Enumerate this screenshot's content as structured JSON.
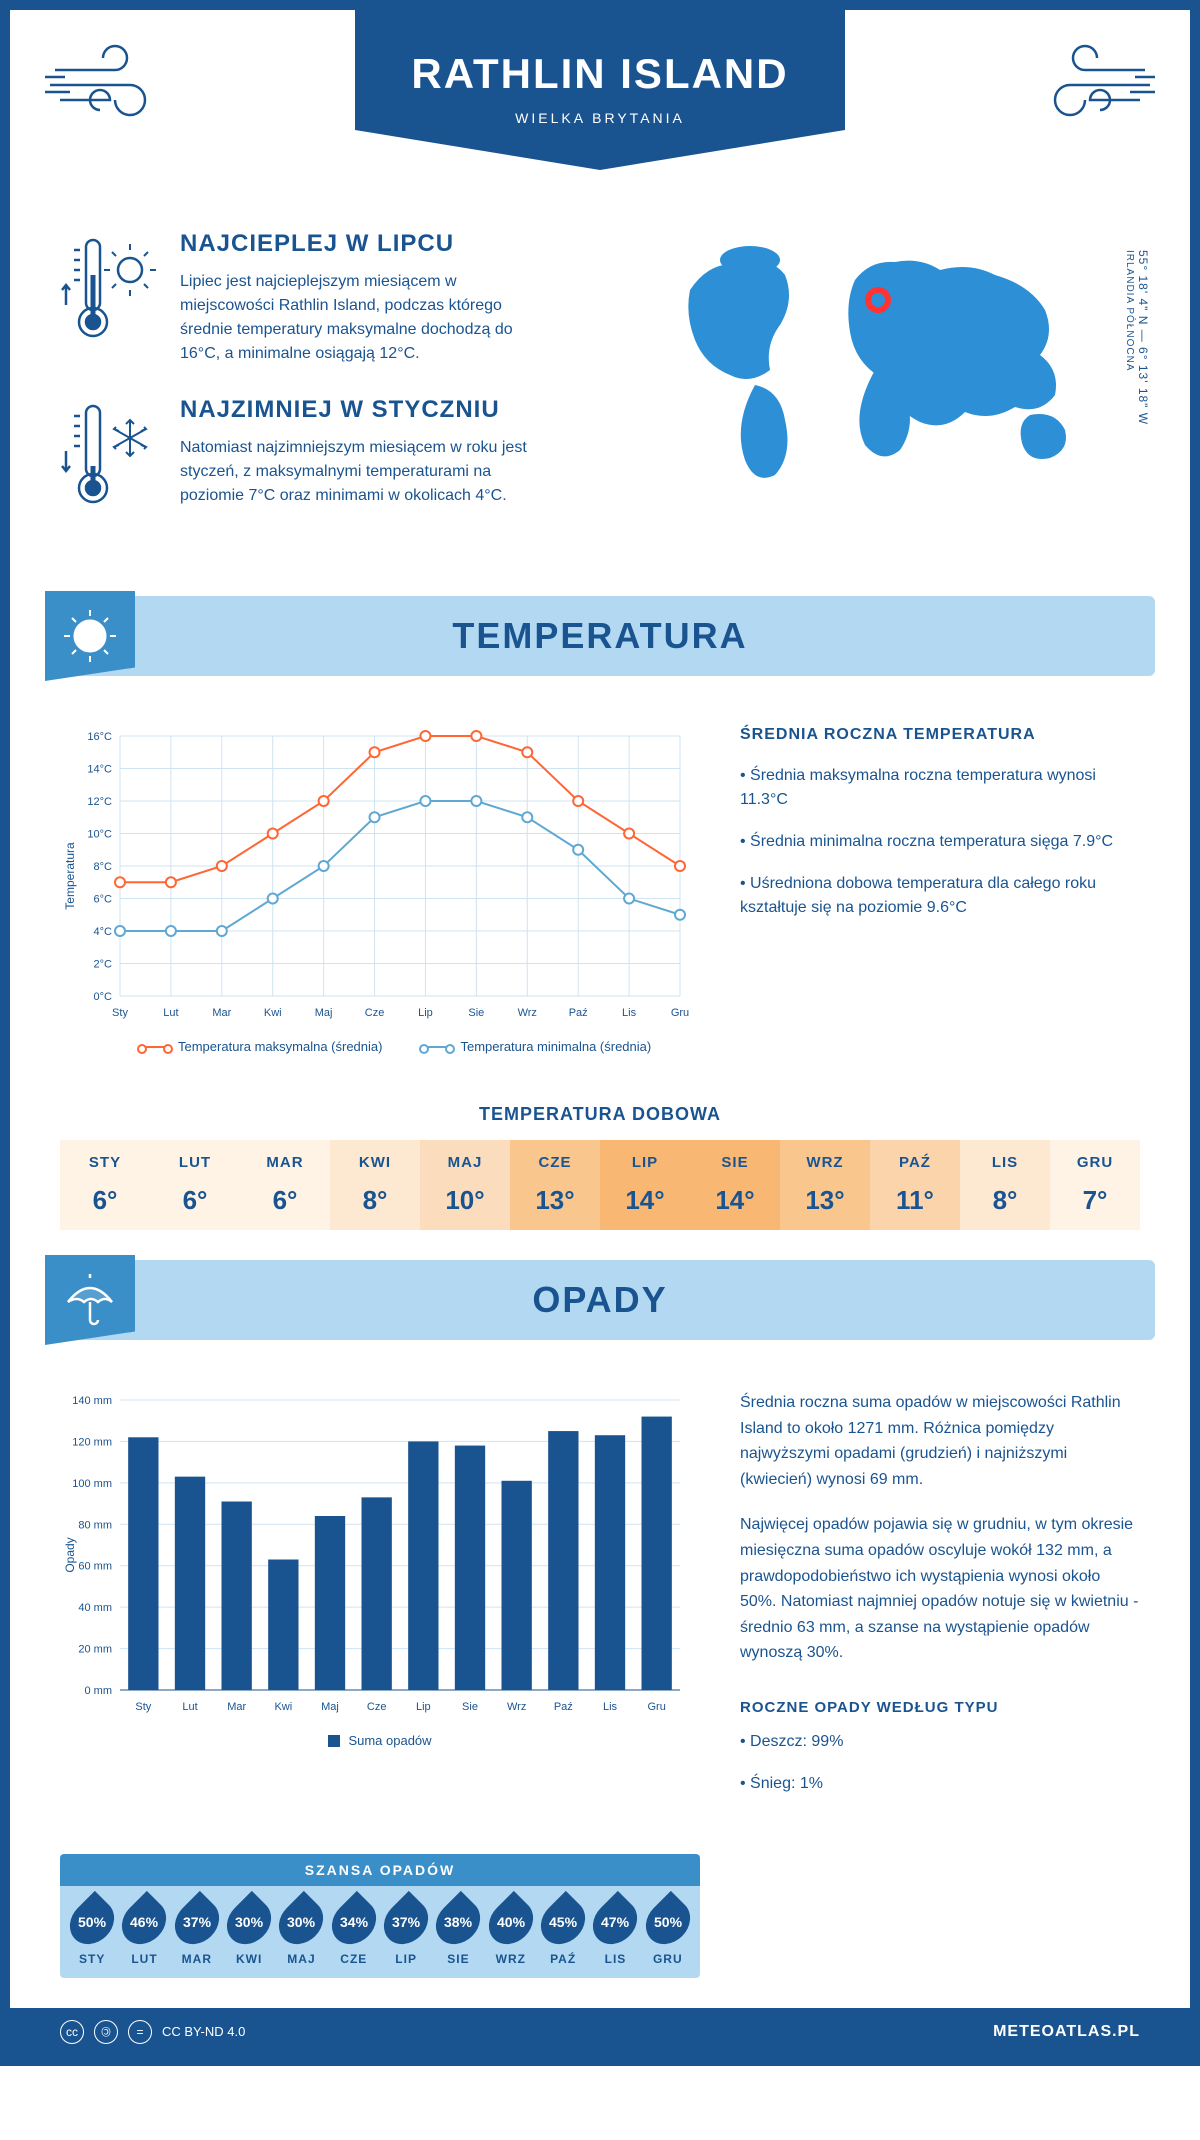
{
  "header": {
    "title": "RATHLIN ISLAND",
    "subtitle": "WIELKA BRYTANIA"
  },
  "coords": {
    "lat_lon": "55° 18' 4\" N — 6° 13' 18\" W",
    "region": "IRLANDIA PÓŁNOCNA"
  },
  "intro": {
    "hot": {
      "heading": "NAJCIEPLEJ W LIPCU",
      "text": "Lipiec jest najcieplejszym miesiącem w miejscowości Rathlin Island, podczas którego średnie temperatury maksymalne dochodzą do 16°C, a minimalne osiągają 12°C."
    },
    "cold": {
      "heading": "NAJZIMNIEJ W STYCZNIU",
      "text": "Natomiast najzimniejszym miesiącem w roku jest styczeń, z maksymalnymi temperaturami na poziomie 7°C oraz minimami w okolicach 4°C."
    }
  },
  "sections": {
    "temperature_title": "TEMPERATURA",
    "precipitation_title": "OPADY"
  },
  "months_short": [
    "Sty",
    "Lut",
    "Mar",
    "Kwi",
    "Maj",
    "Cze",
    "Lip",
    "Sie",
    "Wrz",
    "Paź",
    "Lis",
    "Gru"
  ],
  "months_upper": [
    "STY",
    "LUT",
    "MAR",
    "KWI",
    "MAJ",
    "CZE",
    "LIP",
    "SIE",
    "WRZ",
    "PAŹ",
    "LIS",
    "GRU"
  ],
  "temperature_chart": {
    "type": "line",
    "y_axis_title": "Temperatura",
    "ylim": [
      0,
      16
    ],
    "ytick_step": 2,
    "ytick_suffix": "°C",
    "grid_color": "#cfe3f2",
    "background_color": "#ffffff",
    "series": {
      "max": {
        "label": "Temperatura maksymalna (średnia)",
        "color": "#ff6633",
        "values": [
          7,
          7,
          8,
          10,
          12,
          15,
          16,
          16,
          15,
          12,
          10,
          8
        ]
      },
      "min": {
        "label": "Temperatura minimalna (średnia)",
        "color": "#5fa8d3",
        "values": [
          4,
          4,
          4,
          6,
          8,
          11,
          12,
          12,
          11,
          9,
          6,
          5
        ]
      }
    },
    "line_width": 2,
    "marker": "circle",
    "marker_size": 5
  },
  "temperature_side": {
    "heading": "ŚREDNIA ROCZNA TEMPERATURA",
    "items": [
      "Średnia maksymalna roczna temperatura wynosi 11.3°C",
      "Średnia minimalna roczna temperatura sięga 7.9°C",
      "Uśredniona dobowa temperatura dla całego roku kształtuje się na poziomie 9.6°C"
    ]
  },
  "daily": {
    "heading": "TEMPERATURA DOBOWA",
    "values": [
      "6°",
      "6°",
      "6°",
      "8°",
      "10°",
      "13°",
      "14°",
      "14°",
      "13°",
      "11°",
      "8°",
      "7°"
    ],
    "cell_colors": [
      "#fff3e6",
      "#fff3e6",
      "#fff3e6",
      "#fde8d2",
      "#fbdcbc",
      "#f9c68e",
      "#f8b874",
      "#f8b874",
      "#f9c68e",
      "#fbd4ab",
      "#fde8d2",
      "#fff3e6"
    ]
  },
  "precipitation_chart": {
    "type": "bar",
    "y_axis_title": "Opady",
    "ylim": [
      0,
      140
    ],
    "ytick_step": 20,
    "ytick_suffix": " mm",
    "bar_color": "#1a5490",
    "grid_color": "#cfe3f2",
    "values": [
      122,
      103,
      91,
      63,
      84,
      93,
      120,
      118,
      101,
      125,
      123,
      132
    ],
    "legend_label": "Suma opadów"
  },
  "precipitation_side": {
    "p1": "Średnia roczna suma opadów w miejscowości Rathlin Island to około 1271 mm. Różnica pomiędzy najwyższymi opadami (grudzień) i najniższymi (kwiecień) wynosi 69 mm.",
    "p2": "Najwięcej opadów pojawia się w grudniu, w tym okresie miesięczna suma opadów oscyluje wokół 132 mm, a prawdopodobieństwo ich wystąpienia wynosi około 50%. Natomiast najmniej opadów notuje się w kwietniu - średnio 63 mm, a szanse na wystąpienie opadów wynoszą 30%.",
    "type_heading": "ROCZNE OPADY WEDŁUG TYPU",
    "types": [
      "Deszcz: 99%",
      "Śnieg: 1%"
    ]
  },
  "chance": {
    "heading": "SZANSA OPADÓW",
    "values": [
      "50%",
      "46%",
      "37%",
      "30%",
      "30%",
      "34%",
      "37%",
      "38%",
      "40%",
      "45%",
      "47%",
      "50%"
    ]
  },
  "footer": {
    "license": "CC BY-ND 4.0",
    "site": "METEOATLAS.PL"
  },
  "colors": {
    "primary": "#1a5490",
    "light_blue": "#b3d9f2",
    "mid_blue": "#3a8fc9",
    "map_blue": "#2d8fd5",
    "marker_red": "#ff3333"
  }
}
